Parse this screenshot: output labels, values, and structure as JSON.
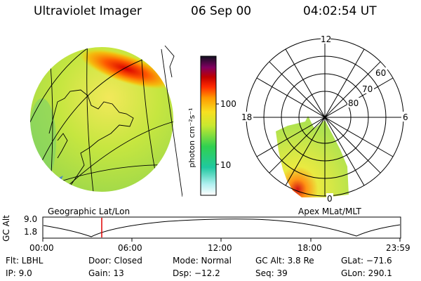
{
  "header": {
    "instrument": "Ultraviolet Imager",
    "date": "06 Sep 00",
    "time": "04:02:54 UT"
  },
  "colorbar": {
    "label": "photon cm⁻²s⁻¹",
    "ticks": [
      "100",
      "10"
    ]
  },
  "polar_plot": {
    "mlt_labels": [
      "12",
      "18",
      "6",
      "0"
    ],
    "lat_labels": [
      "60",
      "70",
      "80"
    ],
    "caption": "Apex MLat/MLT"
  },
  "geo_plot": {
    "caption": "Geographic Lat/Lon"
  },
  "altitude_plot": {
    "ylabel": "GC Alt",
    "ticks": [
      "9.0",
      "1.8"
    ],
    "time_ticks": [
      "00:00",
      "06:00",
      "12:00",
      "18:00",
      "23:59"
    ],
    "marker_time": "04:02:54"
  },
  "info": {
    "filter": "Flt: LBHL",
    "ip": "IP:  9.0",
    "door": "Door: Closed",
    "gain": "Gain: 13",
    "mode": "Mode: Normal",
    "dsp": "Dsp:  −12.2",
    "gc_alt": "GC Alt: 3.8 Re",
    "seq": "Seq: 39",
    "glat": "GLat: −71.6",
    "glon": "GLon: 290.1"
  },
  "colors": {
    "marker": "#e00000",
    "line": "#000000"
  }
}
